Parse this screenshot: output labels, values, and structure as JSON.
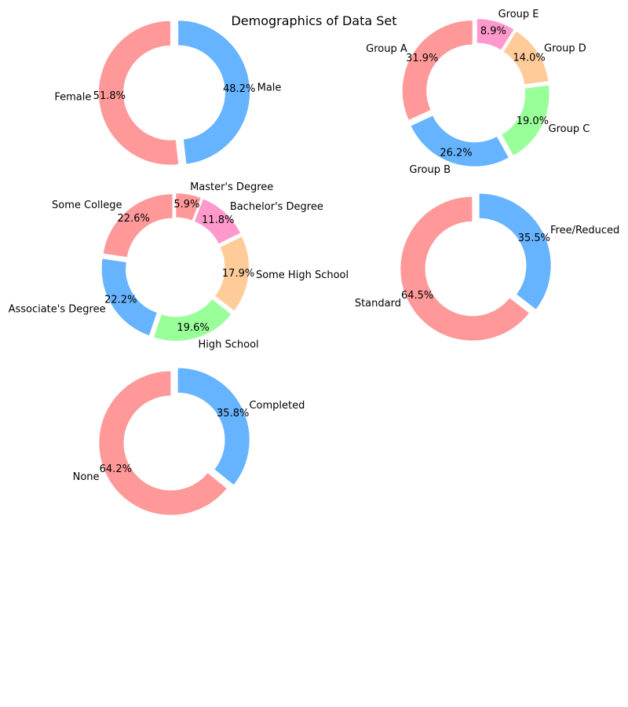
{
  "title": "Demographics of Data Set",
  "colors": [
    "#ff9999",
    "#66b3ff",
    "#99ff99",
    "#ffcc99",
    "#ff99cc"
  ],
  "chart_data": [
    {
      "type": "pie",
      "style": "donut",
      "categories": [
        "Female",
        "Male"
      ],
      "values": [
        51.8,
        48.2
      ],
      "value_labels": [
        "51.8%",
        "48.2%"
      ]
    },
    {
      "type": "pie",
      "style": "donut",
      "categories": [
        "Group A",
        "Group B",
        "Group C",
        "Group D",
        "Group E"
      ],
      "values": [
        31.9,
        26.2,
        19.0,
        14.0,
        8.9
      ],
      "value_labels": [
        "31.9%",
        "26.2%",
        "19.0%",
        "14.0%",
        "8.9%"
      ]
    },
    {
      "type": "pie",
      "style": "donut",
      "categories": [
        "Some College",
        "Associate's Degree",
        "High School",
        "Some High School",
        "Bachelor's Degree",
        "Master's Degree"
      ],
      "values": [
        22.6,
        22.2,
        19.6,
        17.9,
        11.8,
        5.9
      ],
      "value_labels": [
        "22.6%",
        "22.2%",
        "19.6%",
        "17.9%",
        "11.8%",
        "5.9%"
      ]
    },
    {
      "type": "pie",
      "style": "donut",
      "categories": [
        "Standard",
        "Free/Reduced"
      ],
      "values": [
        64.5,
        35.5
      ],
      "value_labels": [
        "64.5%",
        "35.5%"
      ]
    },
    {
      "type": "pie",
      "style": "donut",
      "categories": [
        "None",
        "Completed"
      ],
      "values": [
        64.2,
        35.8
      ],
      "value_labels": [
        "64.2%",
        "35.8%"
      ]
    }
  ]
}
